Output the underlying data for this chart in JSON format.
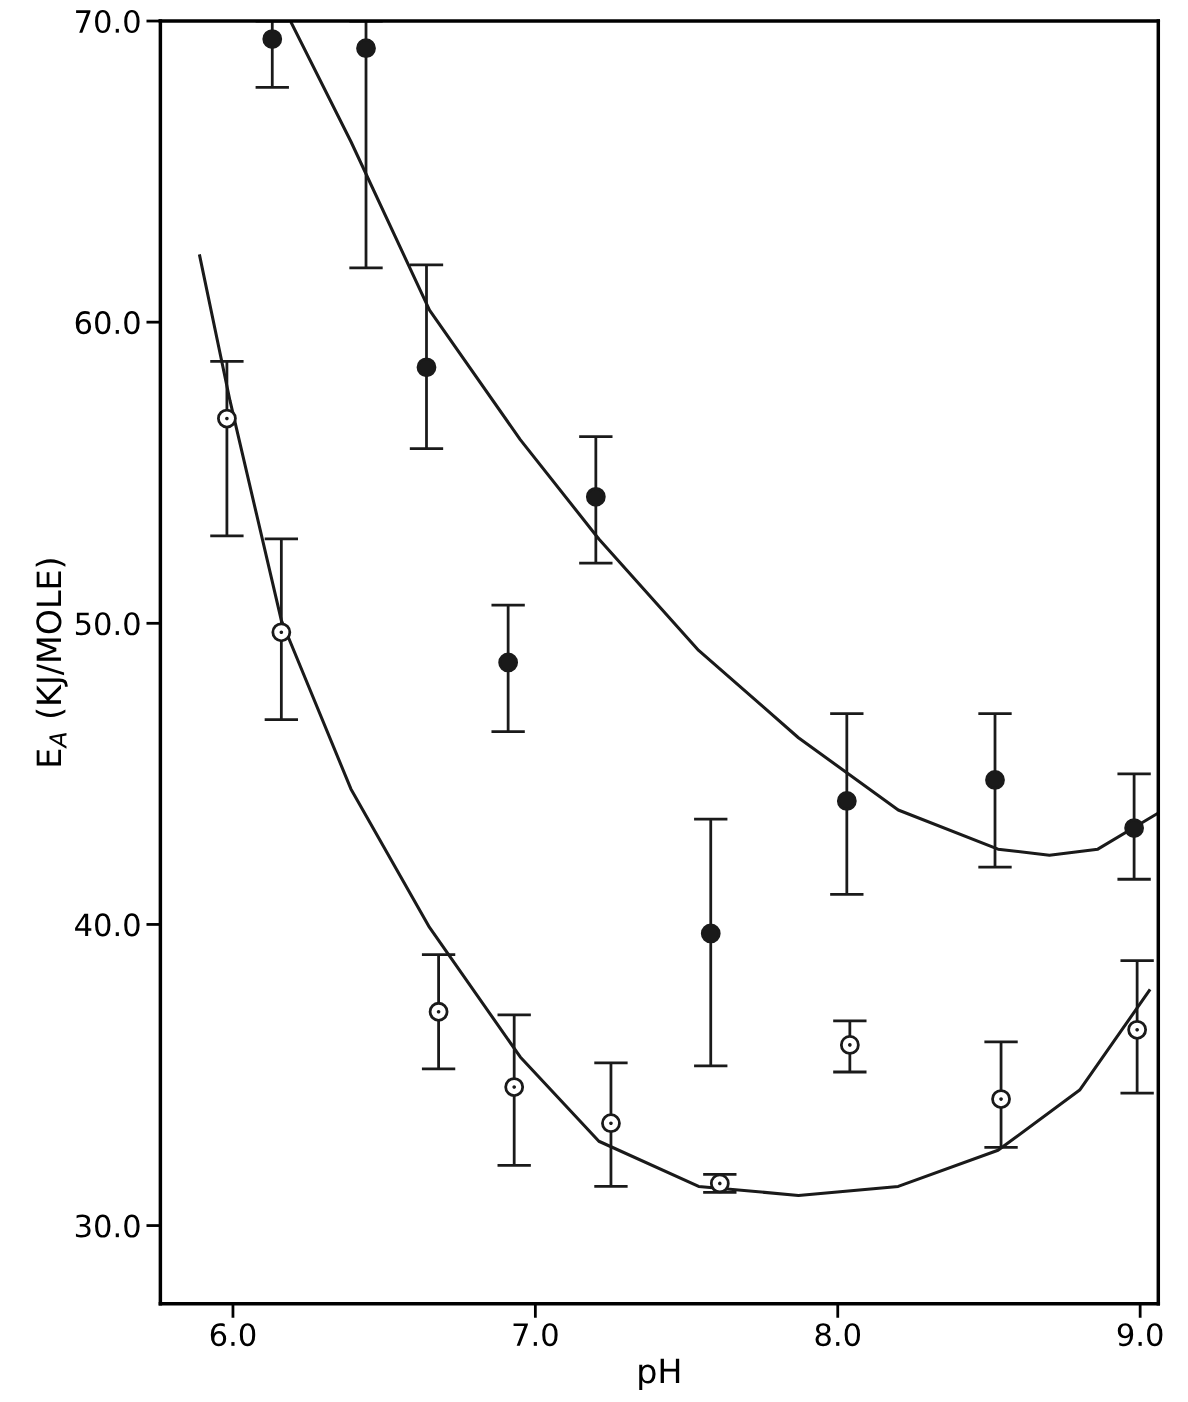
{
  "chart_data": {
    "type": "scatter",
    "xlabel": "pH",
    "ylabel": "E$_{A}$ (KJ/MOLE)",
    "xlim": [
      5.76,
      9.06
    ],
    "ylim": [
      27.4,
      70.0
    ],
    "xticks": [
      {
        "value": 6.0,
        "label": "6.0"
      },
      {
        "value": 7.0,
        "label": "7.0"
      },
      {
        "value": 8.0,
        "label": "8.0"
      },
      {
        "value": 9.0,
        "label": "9.0"
      }
    ],
    "yticks": [
      {
        "value": 30.0,
        "label": "30.0"
      },
      {
        "value": 40.0,
        "label": "40.0"
      },
      {
        "value": 50.0,
        "label": "50.0"
      },
      {
        "value": 60.0,
        "label": "60.0"
      },
      {
        "value": 70.0,
        "label": "70.0"
      }
    ],
    "grid": false,
    "legend": false,
    "series": [
      {
        "type": "scatter",
        "color": "#1a1a1a",
        "marker": "circle",
        "x": [
          6.13,
          6.44,
          6.64,
          6.91,
          7.2,
          7.58,
          8.03,
          8.52,
          8.98
        ],
        "values": [
          69.4,
          69.1,
          58.5,
          48.7,
          54.2,
          39.7,
          44.1,
          44.8,
          43.2
        ],
        "errors": [
          [
            67.8,
            70.0
          ],
          [
            61.8,
            70.0
          ],
          [
            55.8,
            61.9
          ],
          [
            46.4,
            50.6
          ],
          [
            52.0,
            56.2
          ],
          [
            35.3,
            43.5
          ],
          [
            41.0,
            47.0
          ],
          [
            41.9,
            47.0
          ],
          [
            41.5,
            45.0
          ]
        ]
      },
      {
        "type": "scatter",
        "color": "#ffffff",
        "marker": "circle",
        "x": [
          5.98,
          6.16,
          6.68,
          6.93,
          7.25,
          7.61,
          8.04,
          8.54,
          8.99
        ],
        "values": [
          56.8,
          49.7,
          37.1,
          34.6,
          33.4,
          31.4,
          36.0,
          34.2,
          36.5
        ],
        "errors": [
          [
            52.9,
            58.7
          ],
          [
            46.8,
            52.8
          ],
          [
            35.2,
            39.0
          ],
          [
            32.0,
            37.0
          ],
          [
            31.3,
            35.4
          ],
          [
            31.1,
            31.7
          ],
          [
            35.1,
            36.8
          ],
          [
            32.6,
            36.1
          ],
          [
            34.4,
            38.8
          ]
        ]
      },
      {
        "type": "line",
        "color": "#1a1a1a",
        "marker": "none",
        "line_style": "solid",
        "x": [
          6.19,
          6.39,
          6.65,
          6.95,
          7.21,
          7.54,
          7.87,
          8.2,
          8.53,
          8.7,
          8.86,
          9.06
        ],
        "values": [
          70.0,
          66.0,
          60.4,
          56.1,
          52.8,
          49.1,
          46.2,
          43.8,
          42.5,
          42.3,
          42.5,
          43.7
        ]
      },
      {
        "type": "line",
        "color": "#1a1a1a",
        "marker": "none",
        "line_style": "solid",
        "x": [
          5.89,
          5.99,
          6.16,
          6.39,
          6.65,
          6.95,
          7.21,
          7.54,
          7.87,
          8.2,
          8.53,
          8.8,
          9.03
        ],
        "values": [
          62.2,
          57.4,
          50.1,
          44.5,
          39.9,
          35.6,
          32.8,
          31.3,
          31.0,
          31.3,
          32.5,
          34.5,
          37.8
        ]
      }
    ]
  }
}
